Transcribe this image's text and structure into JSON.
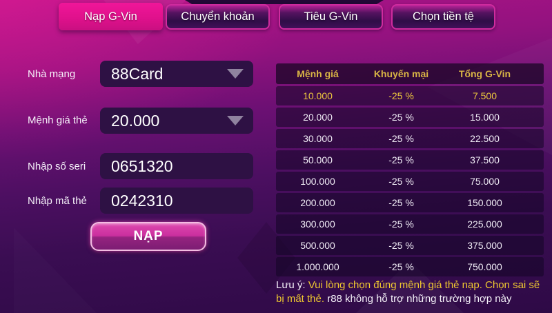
{
  "tabs": [
    {
      "label": "Nạp G-Vin",
      "active": true
    },
    {
      "label": "Chuyển khoản",
      "active": false
    },
    {
      "label": "Tiêu G-Vin",
      "active": false
    },
    {
      "label": "Chọn tiền tệ",
      "active": false
    }
  ],
  "form": {
    "fields": [
      {
        "label": "Nhà mạng",
        "value": "88Card",
        "type": "select",
        "icon": "chevron-down-icon"
      },
      {
        "label": "Mệnh giá thẻ",
        "value": "20.000",
        "type": "select",
        "icon": "chevron-down-icon"
      },
      {
        "label": "Nhập số seri",
        "value": "0651320",
        "type": "input"
      },
      {
        "label": "Nhập mã thẻ",
        "value": "0242310",
        "type": "input"
      }
    ],
    "submit_label": "NẠP"
  },
  "table": {
    "headers": [
      "Mệnh giá",
      "Khuyến mại",
      "Tổng G-Vin"
    ],
    "highlighted_row": 0,
    "rows": [
      [
        "10.000",
        "-25 %",
        "7.500"
      ],
      [
        "20.000",
        "-25 %",
        "15.000"
      ],
      [
        "30.000",
        "-25 %",
        "22.500"
      ],
      [
        "50.000",
        "-25 %",
        "37.500"
      ],
      [
        "100.000",
        "-25 %",
        "75.000"
      ],
      [
        "200.000",
        "-25 %",
        "150.000"
      ],
      [
        "300.000",
        "-25 %",
        "225.000"
      ],
      [
        "500.000",
        "-25 %",
        "375.000"
      ],
      [
        "1.000.000",
        "-25 %",
        "750.000"
      ]
    ]
  },
  "note": {
    "prefix": "Lưu ý: ",
    "warning": "Vui lòng chọn đúng mệnh giá thẻ nạp. Chọn sai sẽ bị mất thẻ. ",
    "suffix": "r88 không hỗ trợ những trường hợp này"
  },
  "colors": {
    "accent_pink": "#e0118c",
    "highlight_yellow": "#eec93d",
    "header_gold": "#d9b545",
    "panel_purple": "#2e1144"
  }
}
